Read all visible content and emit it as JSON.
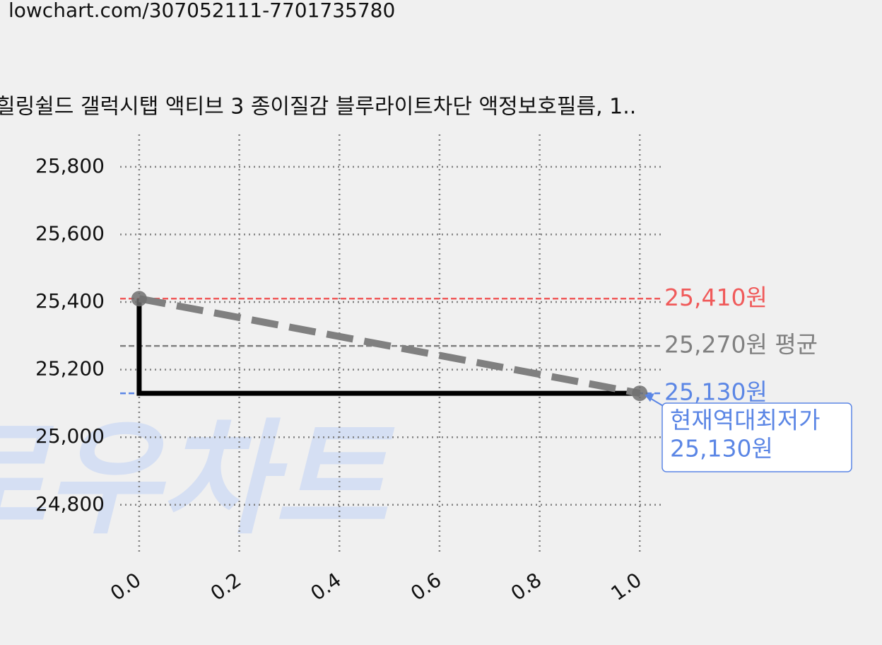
{
  "url": "lowchart.com/307052111-7701735780",
  "chart_data": {
    "type": "line",
    "title": "힐링쉴드 갤럭시탭 액티브 3 종이질감 블루라이트차단 액정보호필름, 1..",
    "watermark": "로우차트",
    "xlim": [
      -0.038,
      1.042
    ],
    "ylim": [
      24651,
      25896
    ],
    "xticks": [
      {
        "value": 0,
        "label": "0.0"
      },
      {
        "value": 0.2,
        "label": "0.2"
      },
      {
        "value": 0.4,
        "label": "0.4"
      },
      {
        "value": 0.6,
        "label": "0.6"
      },
      {
        "value": 0.8,
        "label": "0.8"
      },
      {
        "value": 1,
        "label": "1.0"
      }
    ],
    "yticks": [
      {
        "value": 24800,
        "label": "24,800"
      },
      {
        "value": 25000,
        "label": "25,000"
      },
      {
        "value": 25200,
        "label": "25,200"
      },
      {
        "value": 25400,
        "label": "25,400"
      },
      {
        "value": 25600,
        "label": "25,600"
      },
      {
        "value": 25800,
        "label": "25,800"
      }
    ],
    "grid": true,
    "series": [
      {
        "color": "#000000",
        "style": "solid",
        "x": [
          0,
          0,
          1
        ],
        "values": [
          25410,
          25130,
          25130
        ]
      },
      {
        "color": "#808080",
        "style": "dashed",
        "x": [
          0,
          1
        ],
        "values": [
          25410,
          25130
        ]
      }
    ],
    "points": {
      "color": "#707070",
      "x": [
        0,
        1
      ],
      "values": [
        25410,
        25130
      ]
    },
    "reference_lines": [
      {
        "color": "#f05a5a",
        "value": 25410,
        "label": "25,410원"
      },
      {
        "color": "#808080",
        "value": 25270,
        "label": "25,270원 평균"
      },
      {
        "color": "#5b86e5",
        "value": 25130,
        "label": "25,130원"
      }
    ],
    "annotation": {
      "color": "#5b86e5",
      "lines": [
        "현재역대최저가",
        "25,130원"
      ]
    }
  }
}
